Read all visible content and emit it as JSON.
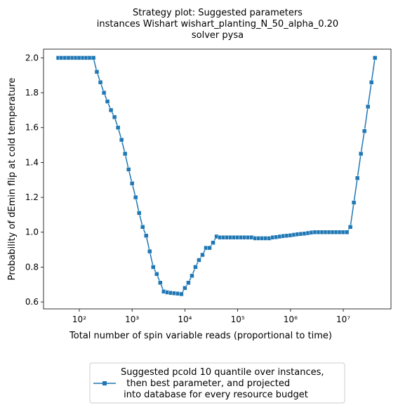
{
  "chart_data": {
    "type": "line",
    "title": "Strategy plot: Suggested parameters\ninstances Wishart wishart_planting_N_50_alpha_0.20\nsolver pysa",
    "xlabel": "Total number of spin variable reads (proportional to time)",
    "ylabel": "Probability of dEmin flip at cold temperature",
    "xscale": "log",
    "legend": "bottom",
    "marker": "square",
    "xlim": [
      21,
      80000000
    ],
    "ylim": [
      0.56,
      2.05
    ],
    "xticks": [
      {
        "value": 100,
        "label": "10²"
      },
      {
        "value": 1000,
        "label": "10³"
      },
      {
        "value": 10000,
        "label": "10⁴"
      },
      {
        "value": 100000,
        "label": "10⁵"
      },
      {
        "value": 1000000,
        "label": "10⁶"
      },
      {
        "value": 10000000,
        "label": "10⁷"
      }
    ],
    "yticks": [
      0.6,
      0.8,
      {
        "value": 1.0,
        "label": "1.0"
      },
      1.2,
      1.4,
      1.6,
      1.8,
      {
        "value": 2.0,
        "label": "2.0"
      }
    ],
    "x": [
      40,
      46,
      54,
      63,
      74,
      86,
      100,
      117,
      136,
      158,
      185,
      215,
      251,
      293,
      341,
      398,
      464,
      541,
      631,
      736,
      858,
      1000,
      1166,
      1359,
      1585,
      1848,
      2154,
      2512,
      2929,
      3415,
      3981,
      4642,
      5412,
      6310,
      7356,
      8577,
      10000,
      11659,
      13594,
      15849,
      18478,
      21544,
      25119,
      29286,
      34146,
      39811,
      46416,
      54117,
      63096,
      73564,
      85770,
      100000,
      116591,
      135936,
      158489,
      184785,
      215443,
      251189,
      292864,
      341455,
      398107,
      464159,
      541170,
      630957,
      735642,
      857696,
      1000000,
      1165914,
      1359356,
      1584893,
      1847850,
      2154435,
      2511886,
      2928645,
      3414549,
      3981072,
      4641589,
      5411695,
      6309573,
      7356423,
      8576959,
      10000000,
      11659144,
      13593564,
      15848932,
      18478498,
      21544347,
      25118864,
      29286446,
      34145489,
      39810717
    ],
    "series": [
      {
        "name": "Suggested pcold 10 quantile over instances,\n  then best parameter, and projected\n into database for every resource budget",
        "color": "#1f77b4",
        "values": [
          2.0,
          2.0,
          2.0,
          2.0,
          2.0,
          2.0,
          2.0,
          2.0,
          2.0,
          2.0,
          2.0,
          1.92,
          1.86,
          1.8,
          1.75,
          1.7,
          1.66,
          1.6,
          1.53,
          1.45,
          1.36,
          1.28,
          1.2,
          1.11,
          1.03,
          0.98,
          0.89,
          0.8,
          0.76,
          0.71,
          0.66,
          0.655,
          0.652,
          0.65,
          0.648,
          0.645,
          0.68,
          0.71,
          0.75,
          0.8,
          0.84,
          0.87,
          0.91,
          0.91,
          0.94,
          0.975,
          0.97,
          0.97,
          0.97,
          0.97,
          0.97,
          0.97,
          0.97,
          0.97,
          0.97,
          0.97,
          0.965,
          0.965,
          0.965,
          0.965,
          0.965,
          0.97,
          0.972,
          0.975,
          0.978,
          0.98,
          0.982,
          0.985,
          0.988,
          0.99,
          0.992,
          0.995,
          0.998,
          1.0,
          1.0,
          1.0,
          1.0,
          1.0,
          1.0,
          1.0,
          1.0,
          1.0,
          1.0,
          1.03,
          1.17,
          1.31,
          1.45,
          1.58,
          1.72,
          1.86,
          2.0
        ]
      }
    ]
  }
}
